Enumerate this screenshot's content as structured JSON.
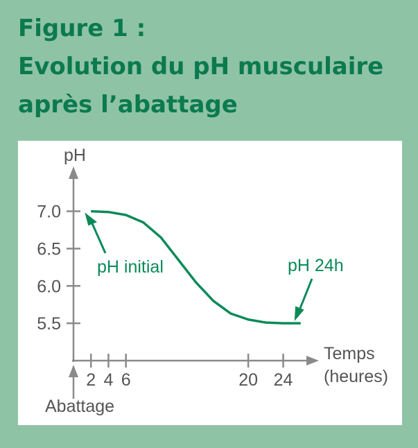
{
  "chart_data": {
    "type": "line",
    "title": [
      "Figure 1 :",
      "Evolution du pH musculaire",
      "après l’abattage"
    ],
    "ylabel": "pH",
    "xlabel": [
      "Temps",
      "(heures)"
    ],
    "origin_label": "Abattage",
    "x": [
      2,
      4,
      6,
      8,
      10,
      12,
      14,
      16,
      18,
      20,
      22,
      24,
      26
    ],
    "series": [
      {
        "name": "pH",
        "color": "#0b8a58",
        "values": [
          7.0,
          6.99,
          6.95,
          6.85,
          6.65,
          6.35,
          6.05,
          5.8,
          5.63,
          5.55,
          5.51,
          5.5,
          5.5
        ]
      }
    ],
    "annotations": [
      "pH initial",
      "pH 24h"
    ],
    "xlim": [
      0,
      28
    ],
    "ylim": [
      5.0,
      7.6
    ],
    "xticks": [
      2,
      4,
      6,
      20,
      24
    ],
    "yticks": [
      {
        "value": 7.0,
        "label": "7.0"
      },
      {
        "value": 6.5,
        "label": "6.5"
      },
      {
        "value": 6.0,
        "label": "6.0"
      },
      {
        "value": 5.5,
        "label": "5.5"
      }
    ]
  }
}
